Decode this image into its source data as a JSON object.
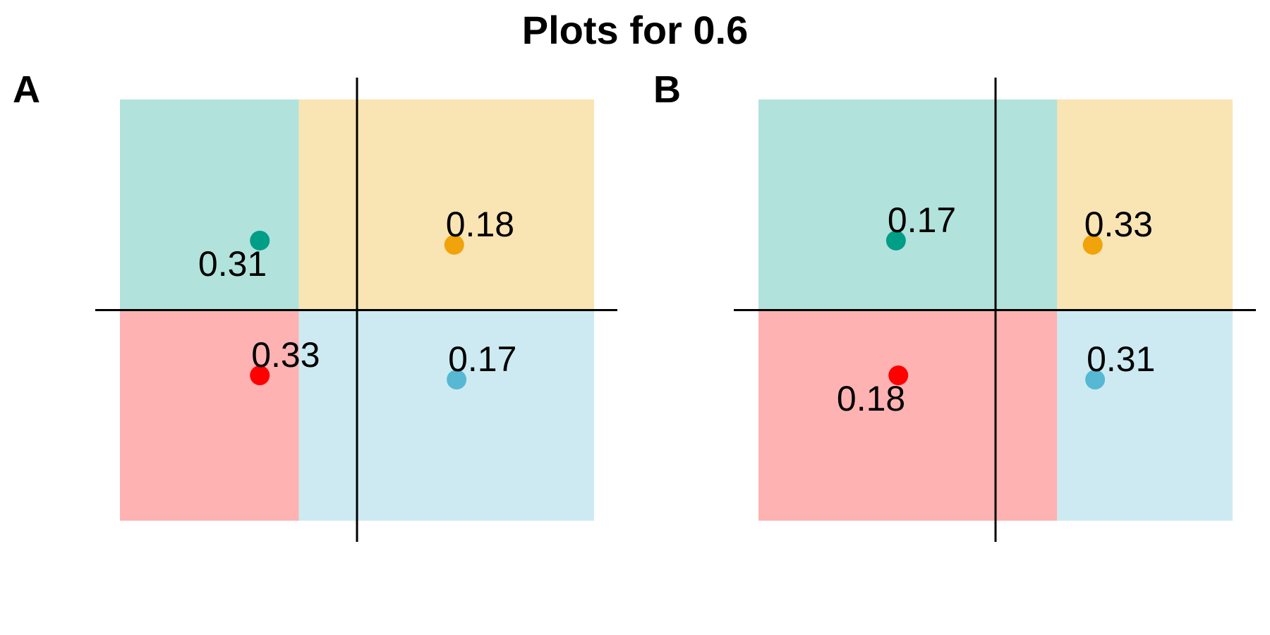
{
  "title": "Plots for 0.6",
  "colors": {
    "teal_fill": "#b2e2dc",
    "orange_fill": "#f9e4b3",
    "red_fill": "#ffb2b2",
    "blue_fill": "#cdeaf2",
    "teal_point": "#009e87",
    "orange_point": "#f0a30a",
    "red_point": "#ff0000",
    "blue_point": "#56b8d3",
    "axis_line": "#000000"
  },
  "chart_data": [
    {
      "type": "scatter",
      "panel_tag": "A",
      "axes": "none",
      "xlim": [
        -1,
        1
      ],
      "ylim": [
        -1,
        1
      ],
      "crosshair": {
        "x": 0,
        "y": 0
      },
      "regions": [
        {
          "name": "teal",
          "color": "teal_fill",
          "x0": -1,
          "x1": -0.245,
          "y0": 0,
          "y1": 1
        },
        {
          "name": "orange",
          "color": "orange_fill",
          "x0": -0.245,
          "x1": 1,
          "y0": 0,
          "y1": 1
        },
        {
          "name": "red",
          "color": "red_fill",
          "x0": -1,
          "x1": -0.245,
          "y0": -1,
          "y1": 0
        },
        {
          "name": "blue",
          "color": "blue_fill",
          "x0": -0.245,
          "x1": 1,
          "y0": -1,
          "y1": 0
        }
      ],
      "points": [
        {
          "name": "teal",
          "color": "teal_point",
          "x": -0.41,
          "y": 0.33,
          "label": "0.31",
          "label_pos": "below-left"
        },
        {
          "name": "orange",
          "color": "orange_point",
          "x": 0.41,
          "y": 0.31,
          "label": "0.18",
          "label_pos": "above-right"
        },
        {
          "name": "red",
          "color": "red_point",
          "x": -0.41,
          "y": -0.31,
          "label": "0.33",
          "label_pos": "above-right"
        },
        {
          "name": "blue",
          "color": "blue_point",
          "x": 0.42,
          "y": -0.33,
          "label": "0.17",
          "label_pos": "above-right"
        }
      ]
    },
    {
      "type": "scatter",
      "panel_tag": "B",
      "axes": "none",
      "xlim": [
        -1,
        1
      ],
      "ylim": [
        -1,
        1
      ],
      "crosshair": {
        "x": 0,
        "y": 0
      },
      "regions": [
        {
          "name": "teal",
          "color": "teal_fill",
          "x0": -1,
          "x1": 0.26,
          "y0": 0,
          "y1": 1
        },
        {
          "name": "orange",
          "color": "orange_fill",
          "x0": 0.26,
          "x1": 1,
          "y0": 0,
          "y1": 1
        },
        {
          "name": "red",
          "color": "red_fill",
          "x0": -1,
          "x1": 0.26,
          "y0": -1,
          "y1": 0
        },
        {
          "name": "blue",
          "color": "blue_fill",
          "x0": 0.26,
          "x1": 1,
          "y0": -1,
          "y1": 0
        }
      ],
      "points": [
        {
          "name": "teal",
          "color": "teal_point",
          "x": -0.42,
          "y": 0.33,
          "label": "0.17",
          "label_pos": "above-right"
        },
        {
          "name": "orange",
          "color": "orange_point",
          "x": 0.41,
          "y": 0.31,
          "label": "0.33",
          "label_pos": "above-right"
        },
        {
          "name": "red",
          "color": "red_point",
          "x": -0.41,
          "y": -0.31,
          "label": "0.18",
          "label_pos": "below-left"
        },
        {
          "name": "blue",
          "color": "blue_point",
          "x": 0.42,
          "y": -0.33,
          "label": "0.31",
          "label_pos": "above-right"
        }
      ]
    }
  ]
}
